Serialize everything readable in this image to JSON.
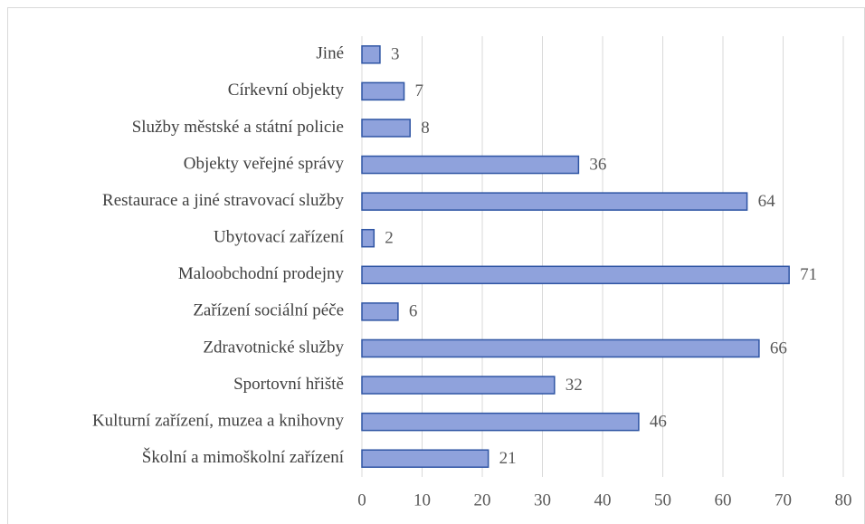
{
  "chart_data": {
    "type": "bar",
    "orientation": "horizontal",
    "categories": [
      "Jiné",
      "Církevní objekty",
      "Služby městské a státní policie",
      "Objekty veřejné správy",
      "Restaurace a jiné stravovací služby",
      "Ubytovací zařízení",
      "Maloobchodní prodejny",
      "Zařízení sociální péče",
      "Zdravotnické služby",
      "Sportovní hřiště",
      "Kulturní zařízení, muzea a knihovny",
      "Školní a mimoškolní zařízení"
    ],
    "values": [
      3,
      7,
      8,
      36,
      64,
      2,
      71,
      6,
      66,
      32,
      46,
      21
    ],
    "color": "#8fa2dc",
    "xlim": [
      0,
      80
    ],
    "xticks": [
      0,
      10,
      20,
      30,
      40,
      50,
      60,
      70,
      80
    ],
    "grid": true
  }
}
